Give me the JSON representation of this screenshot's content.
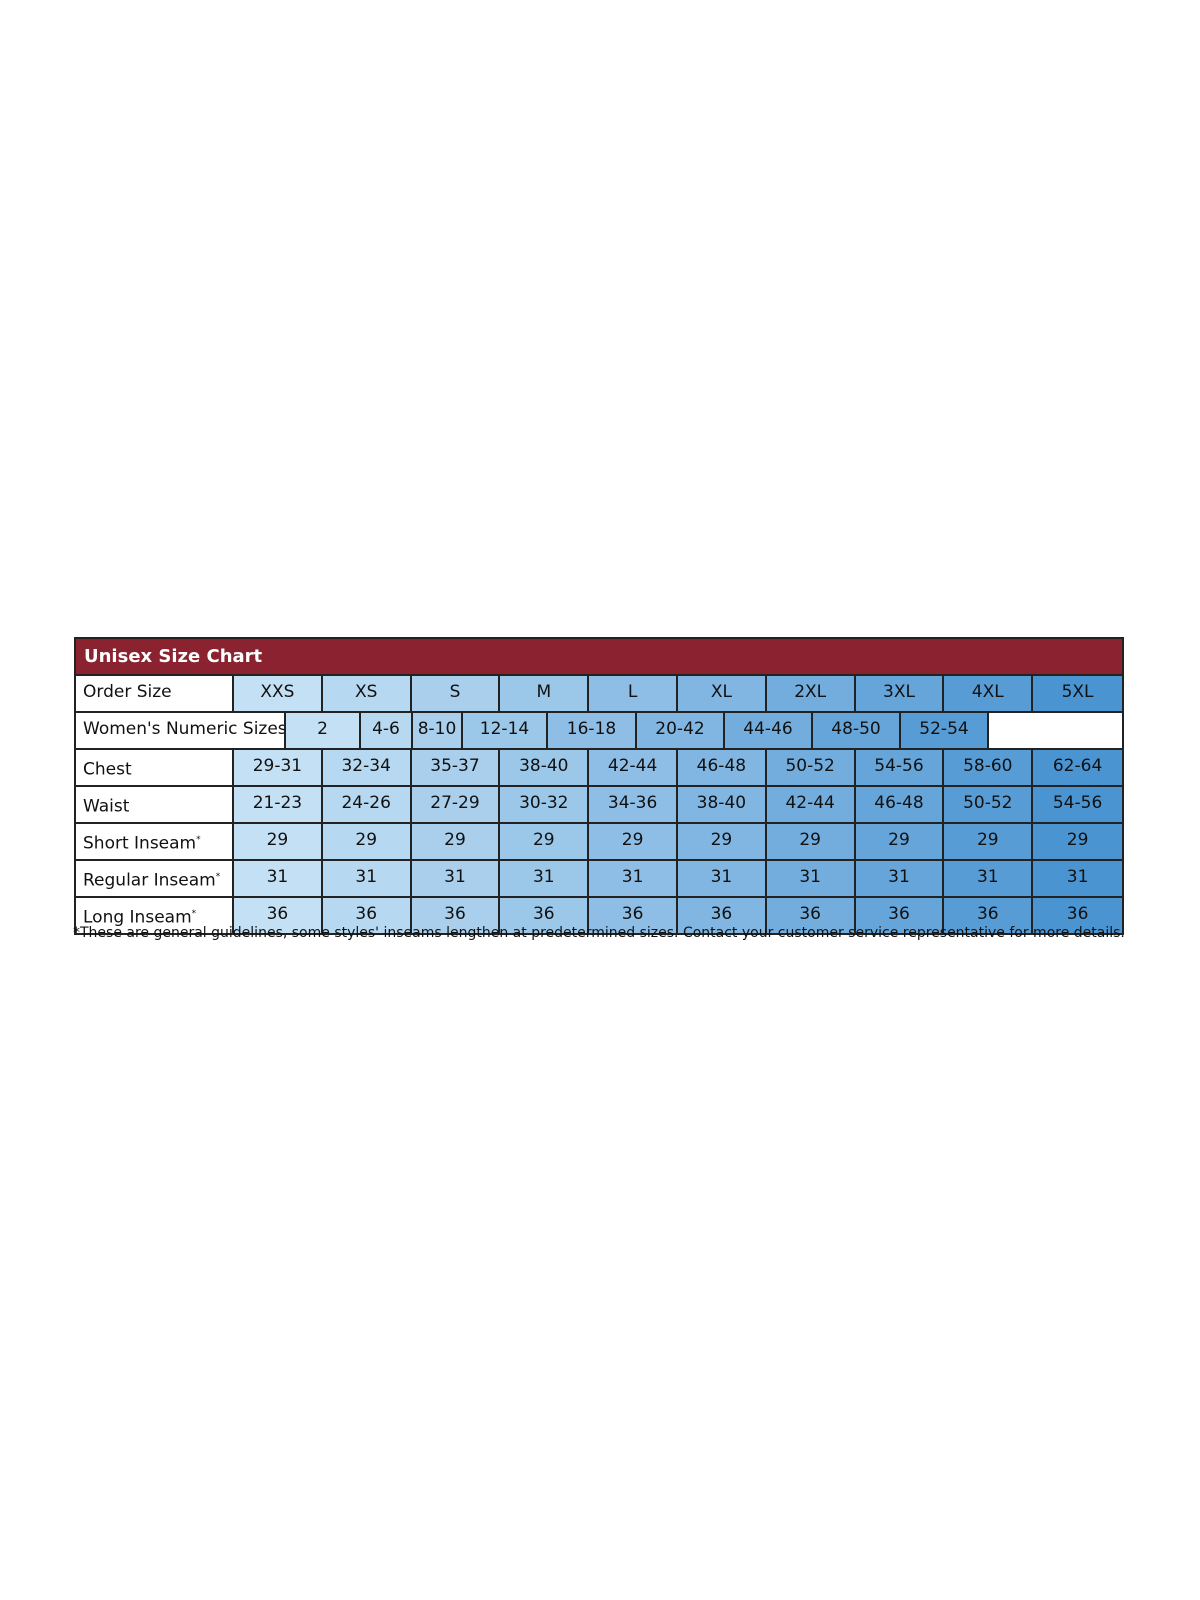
{
  "title": "Unisex Size Chart",
  "colors": {
    "title_bar": "#8a2230",
    "column_gradient_start": "#c4e0f4",
    "column_gradient_end": "#4a94d2"
  },
  "order_size": {
    "label": "Order Size",
    "values": [
      "XXS",
      "XS",
      "S",
      "M",
      "L",
      "XL",
      "2XL",
      "3XL",
      "4XL",
      "5XL"
    ]
  },
  "womens": {
    "label": "Women's Numeric Sizes",
    "values": [
      "2",
      "4-6",
      "8-10",
      "12-14",
      "16-18",
      "20-42",
      "44-46",
      "48-50",
      "52-54"
    ]
  },
  "rows": [
    {
      "label": "Chest",
      "mark": "",
      "values": [
        "29-31",
        "32-34",
        "35-37",
        "38-40",
        "42-44",
        "46-48",
        "50-52",
        "54-56",
        "58-60",
        "62-64"
      ]
    },
    {
      "label": "Waist",
      "mark": "",
      "values": [
        "21-23",
        "24-26",
        "27-29",
        "30-32",
        "34-36",
        "38-40",
        "42-44",
        "46-48",
        "50-52",
        "54-56"
      ]
    },
    {
      "label": "Short Inseam",
      "mark": "*",
      "values": [
        "29",
        "29",
        "29",
        "29",
        "29",
        "29",
        "29",
        "29",
        "29",
        "29"
      ]
    },
    {
      "label": "Regular Inseam",
      "mark": "*",
      "values": [
        "31",
        "31",
        "31",
        "31",
        "31",
        "31",
        "31",
        "31",
        "31",
        "31"
      ]
    },
    {
      "label": "Long Inseam",
      "mark": "*",
      "values": [
        "36",
        "36",
        "36",
        "36",
        "36",
        "36",
        "36",
        "36",
        "36",
        "36"
      ]
    }
  ],
  "footnote": "*These are general guidelines, some styles' inseams lengthen at predetermined sizes.  Contact your customer service representative for more details."
}
